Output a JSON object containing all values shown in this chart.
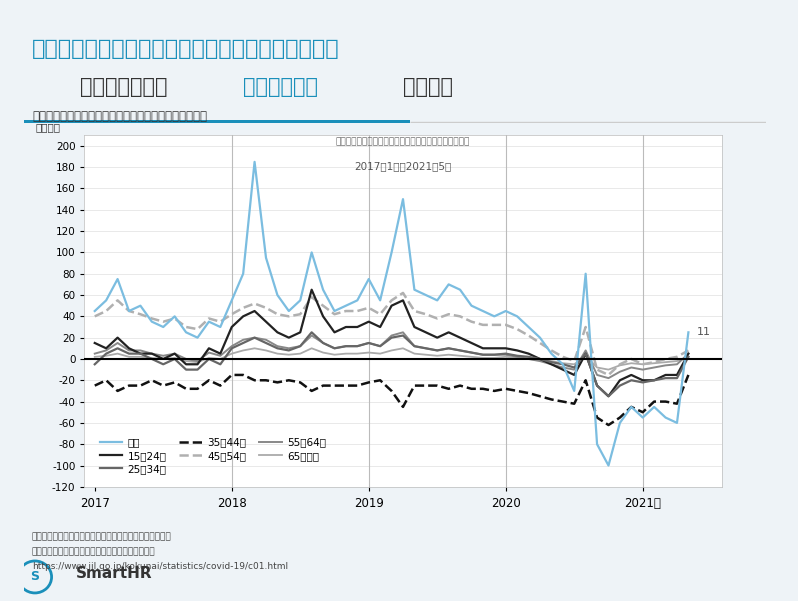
{
  "title1": "就業者数の合計はコロナ禍の落ち込みから増加傾向",
  "title2_part1": "今後、産業間の",
  "title2_highlight": "人の奪い合い",
  "title2_part2": "が顕著に",
  "chart_label": "年齢階級別就業者数（原数値・対前年同月増減）男女計",
  "chart_inner_label": "年齢階級別就業者数（原数値・対前年同月増減）男女計",
  "date_range_label": "2017年1月〜2021年5月",
  "ylabel": "（万人）",
  "annotation_11": "11",
  "source_line1": "出典：総務省統計局「労働力調査（基本集計）」を元に、",
  "source_line2": "独立行政法人労働政策研究・研修機構が作成した図",
  "source_url": "https://www.jil.go.jp/kokunai/statistics/covid-19/c01.html",
  "bg_color": "#eef3f7",
  "chart_bg_color": "#ffffff",
  "title1_color": "#1a8fba",
  "title2_color": "#333333",
  "highlight_color": "#1a8fba",
  "ylim": [
    -120,
    210
  ],
  "yticks": [
    -120,
    -100,
    -80,
    -60,
    -40,
    -20,
    0,
    20,
    40,
    60,
    80,
    100,
    120,
    140,
    160,
    180,
    200
  ],
  "xtick_labels": [
    "2017",
    "2018",
    "2019",
    "2020",
    "2021年"
  ],
  "vline_years": [
    2018,
    2019,
    2020,
    2021
  ],
  "series": {
    "総数": {
      "color": "#7bbde0",
      "linestyle": "-",
      "linewidth": 1.6,
      "zorder": 5,
      "values": [
        45,
        55,
        75,
        45,
        50,
        35,
        30,
        40,
        25,
        20,
        35,
        30,
        55,
        80,
        185,
        95,
        60,
        45,
        55,
        100,
        65,
        45,
        50,
        55,
        75,
        55,
        100,
        150,
        65,
        60,
        55,
        70,
        65,
        50,
        45,
        40,
        45,
        40,
        30,
        20,
        5,
        -5,
        -30,
        80,
        -80,
        -100,
        -60,
        -45,
        -55,
        -45,
        -55,
        -60,
        25
      ]
    },
    "15〜24歳": {
      "color": "#222222",
      "linestyle": "-",
      "linewidth": 1.6,
      "zorder": 4,
      "values": [
        15,
        10,
        20,
        10,
        5,
        5,
        0,
        5,
        -5,
        -5,
        10,
        5,
        30,
        40,
        45,
        35,
        25,
        20,
        25,
        65,
        40,
        25,
        30,
        30,
        35,
        30,
        50,
        55,
        30,
        25,
        20,
        25,
        20,
        15,
        10,
        10,
        10,
        8,
        5,
        0,
        -5,
        -10,
        -15,
        5,
        -25,
        -35,
        -20,
        -15,
        -20,
        -20,
        -15,
        -15,
        5
      ]
    },
    "25〜34歳": {
      "color": "#666666",
      "linestyle": "-",
      "linewidth": 1.6,
      "zorder": 4,
      "values": [
        -5,
        5,
        10,
        5,
        5,
        0,
        -5,
        0,
        -10,
        -10,
        0,
        -5,
        10,
        15,
        20,
        15,
        10,
        8,
        12,
        25,
        15,
        10,
        12,
        12,
        15,
        12,
        20,
        22,
        12,
        10,
        8,
        10,
        8,
        6,
        4,
        4,
        5,
        3,
        2,
        0,
        -3,
        -5,
        -8,
        5,
        -25,
        -35,
        -25,
        -20,
        -22,
        -20,
        -18,
        -18,
        2
      ]
    },
    "35〜44歳": {
      "color": "#111111",
      "linestyle": "--",
      "linewidth": 1.8,
      "zorder": 3,
      "values": [
        -25,
        -20,
        -30,
        -25,
        -25,
        -20,
        -25,
        -22,
        -28,
        -28,
        -20,
        -25,
        -15,
        -15,
        -20,
        -20,
        -22,
        -20,
        -22,
        -30,
        -25,
        -25,
        -25,
        -25,
        -22,
        -20,
        -30,
        -45,
        -25,
        -25,
        -25,
        -28,
        -25,
        -28,
        -28,
        -30,
        -28,
        -30,
        -32,
        -35,
        -38,
        -40,
        -42,
        -20,
        -55,
        -62,
        -55,
        -45,
        -50,
        -40,
        -40,
        -42,
        -15
      ]
    },
    "45〜54歳": {
      "color": "#b0b0b0",
      "linestyle": "--",
      "linewidth": 1.8,
      "zorder": 3,
      "values": [
        40,
        45,
        55,
        45,
        42,
        38,
        35,
        38,
        30,
        28,
        38,
        35,
        42,
        48,
        52,
        48,
        42,
        40,
        42,
        58,
        50,
        42,
        45,
        45,
        48,
        42,
        55,
        62,
        45,
        42,
        38,
        42,
        40,
        35,
        32,
        32,
        32,
        28,
        22,
        15,
        8,
        2,
        -2,
        30,
        -10,
        -15,
        -5,
        0,
        -5,
        -3,
        0,
        2,
        8
      ]
    },
    "55〜64歳": {
      "color": "#888888",
      "linestyle": "-",
      "linewidth": 1.4,
      "zorder": 3,
      "values": [
        5,
        8,
        15,
        8,
        8,
        5,
        3,
        5,
        0,
        -2,
        6,
        3,
        12,
        18,
        20,
        18,
        12,
        10,
        12,
        22,
        15,
        10,
        12,
        12,
        15,
        12,
        22,
        25,
        12,
        10,
        8,
        10,
        8,
        6,
        4,
        4,
        4,
        2,
        0,
        -2,
        -5,
        -8,
        -10,
        8,
        -15,
        -18,
        -12,
        -8,
        -10,
        -8,
        -6,
        -5,
        5
      ]
    },
    "65歳以上": {
      "color": "#aaaaaa",
      "linestyle": "-",
      "linewidth": 1.3,
      "zorder": 2,
      "values": [
        2,
        3,
        5,
        2,
        2,
        1,
        0,
        1,
        -2,
        -3,
        1,
        0,
        5,
        8,
        10,
        8,
        5,
        4,
        5,
        10,
        6,
        4,
        5,
        5,
        6,
        5,
        8,
        10,
        5,
        4,
        3,
        4,
        3,
        2,
        1,
        1,
        2,
        1,
        0,
        -1,
        -2,
        -4,
        -5,
        3,
        -8,
        -10,
        -6,
        -4,
        -5,
        -4,
        -3,
        -2,
        2
      ]
    }
  }
}
